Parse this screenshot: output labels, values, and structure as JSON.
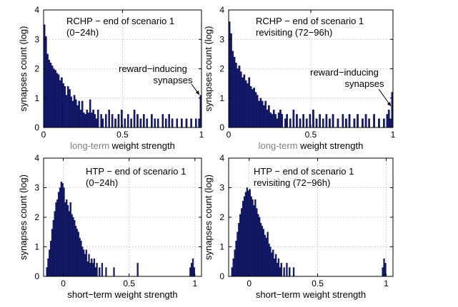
{
  "chart_data": [
    {
      "type": "bar",
      "title_lines": [
        "RCHP − end of scenario 1",
        "(0−24h)"
      ],
      "xlabel_prefix": "long-term",
      "xlabel_rest": " weight strength",
      "ylabel": "synapses count (log)",
      "xlim": [
        0,
        1
      ],
      "ylim": [
        0,
        4
      ],
      "xticks": [
        "0",
        "0.5",
        "1"
      ],
      "yticks": [
        "0",
        "1",
        "2",
        "3",
        "4"
      ],
      "grid": true,
      "annotation": [
        "reward−inducing",
        "synapses"
      ],
      "bin_width": 0.01,
      "bins": [
        [
          0.005,
          3.5
        ],
        [
          0.015,
          3.1
        ],
        [
          0.025,
          2.5
        ],
        [
          0.035,
          2.3
        ],
        [
          0.045,
          2.2
        ],
        [
          0.055,
          2.1
        ],
        [
          0.065,
          2.0
        ],
        [
          0.075,
          1.95
        ],
        [
          0.085,
          1.85
        ],
        [
          0.095,
          1.8
        ],
        [
          0.105,
          1.6
        ],
        [
          0.115,
          1.7
        ],
        [
          0.125,
          1.5
        ],
        [
          0.135,
          1.4
        ],
        [
          0.145,
          1.1
        ],
        [
          0.155,
          1.4
        ],
        [
          0.165,
          1.3
        ],
        [
          0.175,
          1.05
        ],
        [
          0.185,
          0.9
        ],
        [
          0.195,
          1.1
        ],
        [
          0.205,
          0.95
        ],
        [
          0.215,
          0.75
        ],
        [
          0.225,
          0.9
        ],
        [
          0.235,
          0.6
        ],
        [
          0.245,
          0.9
        ],
        [
          0.255,
          0.5
        ],
        [
          0.265,
          0.45
        ],
        [
          0.275,
          0.6
        ],
        [
          0.285,
          0.5
        ],
        [
          0.295,
          0.95
        ],
        [
          0.305,
          0.5
        ],
        [
          0.315,
          0.6
        ],
        [
          0.325,
          0.45
        ],
        [
          0.335,
          0.3
        ],
        [
          0.345,
          0.6
        ],
        [
          0.365,
          0.45
        ],
        [
          0.375,
          0.3
        ],
        [
          0.395,
          0.45
        ],
        [
          0.415,
          0.6
        ],
        [
          0.435,
          0.45
        ],
        [
          0.455,
          0.3
        ],
        [
          0.475,
          0.45
        ],
        [
          0.495,
          0.6
        ],
        [
          0.515,
          0.3
        ],
        [
          0.535,
          0.45
        ],
        [
          0.555,
          0.3
        ],
        [
          0.575,
          0.6
        ],
        [
          0.595,
          0.45
        ],
        [
          0.615,
          0.3
        ],
        [
          0.635,
          0.45
        ],
        [
          0.655,
          0.3
        ],
        [
          0.685,
          0.45
        ],
        [
          0.705,
          0.3
        ],
        [
          0.725,
          0.3
        ],
        [
          0.755,
          0.45
        ],
        [
          0.775,
          0.3
        ],
        [
          0.795,
          0.45
        ],
        [
          0.815,
          0.3
        ],
        [
          0.845,
          0.3
        ],
        [
          0.875,
          0.3
        ],
        [
          0.905,
          0.3
        ],
        [
          0.935,
          0.3
        ],
        [
          0.965,
          0.3
        ],
        [
          0.985,
          0.3
        ],
        [
          0.995,
          1.1
        ]
      ]
    },
    {
      "type": "bar",
      "title_lines": [
        "RCHP − end of scenario 1",
        "revisiting (72−96h)"
      ],
      "xlabel_prefix": "long-term",
      "xlabel_rest": " weight strength",
      "ylabel": "synapses count (log)",
      "xlim": [
        0,
        1
      ],
      "ylim": [
        0,
        4
      ],
      "xticks": [
        "0",
        "0.5",
        "1"
      ],
      "yticks": [
        "0",
        "1",
        "2",
        "3",
        "4"
      ],
      "grid": true,
      "annotation": [
        "reward−inducing",
        "synapses"
      ],
      "bin_width": 0.01,
      "bins": [
        [
          0.005,
          3.6
        ],
        [
          0.015,
          3.2
        ],
        [
          0.025,
          2.6
        ],
        [
          0.035,
          2.4
        ],
        [
          0.045,
          2.2
        ],
        [
          0.055,
          2.0
        ],
        [
          0.065,
          2.1
        ],
        [
          0.075,
          1.9
        ],
        [
          0.085,
          1.7
        ],
        [
          0.095,
          1.8
        ],
        [
          0.105,
          1.6
        ],
        [
          0.115,
          1.5
        ],
        [
          0.125,
          1.7
        ],
        [
          0.135,
          1.4
        ],
        [
          0.145,
          1.3
        ],
        [
          0.155,
          1.35
        ],
        [
          0.165,
          1.2
        ],
        [
          0.175,
          1.1
        ],
        [
          0.185,
          0.9
        ],
        [
          0.195,
          1.0
        ],
        [
          0.205,
          0.9
        ],
        [
          0.215,
          0.75
        ],
        [
          0.225,
          0.9
        ],
        [
          0.235,
          0.6
        ],
        [
          0.245,
          0.75
        ],
        [
          0.255,
          0.5
        ],
        [
          0.265,
          0.45
        ],
        [
          0.275,
          0.6
        ],
        [
          0.285,
          0.45
        ],
        [
          0.295,
          0.3
        ],
        [
          0.305,
          0.5
        ],
        [
          0.315,
          0.6
        ],
        [
          0.325,
          0.45
        ],
        [
          0.345,
          0.3
        ],
        [
          0.355,
          0.45
        ],
        [
          0.375,
          0.3
        ],
        [
          0.395,
          0.6
        ],
        [
          0.415,
          0.45
        ],
        [
          0.435,
          0.3
        ],
        [
          0.455,
          0.45
        ],
        [
          0.475,
          0.3
        ],
        [
          0.495,
          0.45
        ],
        [
          0.515,
          0.6
        ],
        [
          0.535,
          0.3
        ],
        [
          0.555,
          0.45
        ],
        [
          0.575,
          0.3
        ],
        [
          0.595,
          0.45
        ],
        [
          0.615,
          0.3
        ],
        [
          0.635,
          0.45
        ],
        [
          0.665,
          0.3
        ],
        [
          0.695,
          0.45
        ],
        [
          0.715,
          0.3
        ],
        [
          0.735,
          0.45
        ],
        [
          0.765,
          0.3
        ],
        [
          0.785,
          0.45
        ],
        [
          0.815,
          0.3
        ],
        [
          0.835,
          0.45
        ],
        [
          0.855,
          0.3
        ],
        [
          0.885,
          0.45
        ],
        [
          0.915,
          0.3
        ],
        [
          0.945,
          0.3
        ],
        [
          0.965,
          0.45
        ],
        [
          0.975,
          0.6
        ],
        [
          0.985,
          0.3
        ],
        [
          0.995,
          1.2
        ]
      ]
    },
    {
      "type": "bar",
      "title_lines": [
        "HTP − end of scenario 1",
        "(0−24h)"
      ],
      "xlabel_prefix": "",
      "xlabel_rest": "short−term weight strength",
      "ylabel": "synapses count (log)",
      "xlim": [
        -0.15,
        1.05
      ],
      "ylim": [
        0,
        4
      ],
      "xticks": [
        "0",
        "0.5",
        "1"
      ],
      "yticks": [
        "0",
        "1",
        "2",
        "3",
        "4"
      ],
      "grid": true,
      "bin_width": 0.01,
      "bins": [
        [
          -0.125,
          0.3
        ],
        [
          -0.115,
          0.6
        ],
        [
          -0.105,
          0.9
        ],
        [
          -0.095,
          1.2
        ],
        [
          -0.085,
          1.6
        ],
        [
          -0.075,
          1.9
        ],
        [
          -0.065,
          2.2
        ],
        [
          -0.055,
          2.5
        ],
        [
          -0.045,
          2.6
        ],
        [
          -0.035,
          2.85
        ],
        [
          -0.025,
          3.0
        ],
        [
          -0.015,
          3.2
        ],
        [
          -0.005,
          3.15
        ],
        [
          0.005,
          3.0
        ],
        [
          0.015,
          2.5
        ],
        [
          0.025,
          2.6
        ],
        [
          0.035,
          2.4
        ],
        [
          0.045,
          2.2
        ],
        [
          0.055,
          2.5
        ],
        [
          0.065,
          2.1
        ],
        [
          0.075,
          2.0
        ],
        [
          0.085,
          1.9
        ],
        [
          0.095,
          1.7
        ],
        [
          0.105,
          1.6
        ],
        [
          0.115,
          1.5
        ],
        [
          0.125,
          1.3
        ],
        [
          0.135,
          1.2
        ],
        [
          0.145,
          1.0
        ],
        [
          0.155,
          0.9
        ],
        [
          0.165,
          0.75
        ],
        [
          0.175,
          0.9
        ],
        [
          0.185,
          0.5
        ],
        [
          0.195,
          0.75
        ],
        [
          0.205,
          0.45
        ],
        [
          0.215,
          0.6
        ],
        [
          0.225,
          0.45
        ],
        [
          0.235,
          0.6
        ],
        [
          0.245,
          0.3
        ],
        [
          0.255,
          0.45
        ],
        [
          0.275,
          0.3
        ],
        [
          0.295,
          0.45
        ],
        [
          0.325,
          0.3
        ],
        [
          0.385,
          0.3
        ],
        [
          0.565,
          0.45
        ],
        [
          0.965,
          0.3
        ],
        [
          0.975,
          0.45
        ],
        [
          0.985,
          0.6
        ],
        [
          0.995,
          0.3
        ]
      ]
    },
    {
      "type": "bar",
      "title_lines": [
        "HTP − end of scenario 1",
        "revisiting (72−96h)"
      ],
      "xlabel_prefix": "",
      "xlabel_rest": "short−term weight strength",
      "ylabel": "synapses count (log)",
      "xlim": [
        -0.15,
        1.05
      ],
      "ylim": [
        0,
        4
      ],
      "xticks": [
        "0",
        "0.5",
        "1"
      ],
      "yticks": [
        "0",
        "1",
        "2",
        "3",
        "4"
      ],
      "grid": true,
      "bin_width": 0.01,
      "bins": [
        [
          -0.125,
          0.3
        ],
        [
          -0.115,
          0.6
        ],
        [
          -0.105,
          0.9
        ],
        [
          -0.095,
          1.2
        ],
        [
          -0.085,
          1.5
        ],
        [
          -0.075,
          1.8
        ],
        [
          -0.065,
          2.1
        ],
        [
          -0.055,
          2.3
        ],
        [
          -0.045,
          2.55
        ],
        [
          -0.035,
          2.7
        ],
        [
          -0.025,
          2.85
        ],
        [
          -0.015,
          3.0
        ],
        [
          -0.005,
          2.9
        ],
        [
          0.005,
          2.95
        ],
        [
          0.015,
          2.7
        ],
        [
          0.025,
          2.6
        ],
        [
          0.035,
          2.4
        ],
        [
          0.045,
          2.6
        ],
        [
          0.055,
          2.3
        ],
        [
          0.065,
          2.1
        ],
        [
          0.075,
          2.0
        ],
        [
          0.085,
          1.8
        ],
        [
          0.095,
          1.7
        ],
        [
          0.105,
          1.6
        ],
        [
          0.115,
          1.4
        ],
        [
          0.125,
          1.3
        ],
        [
          0.135,
          1.5
        ],
        [
          0.145,
          1.1
        ],
        [
          0.155,
          1.0
        ],
        [
          0.165,
          0.8
        ],
        [
          0.175,
          0.9
        ],
        [
          0.185,
          0.6
        ],
        [
          0.195,
          0.75
        ],
        [
          0.205,
          0.45
        ],
        [
          0.215,
          0.6
        ],
        [
          0.225,
          0.3
        ],
        [
          0.235,
          0.45
        ],
        [
          0.255,
          0.3
        ],
        [
          0.275,
          0.45
        ],
        [
          0.295,
          0.3
        ],
        [
          0.325,
          0.3
        ],
        [
          0.975,
          0.3
        ],
        [
          0.985,
          0.6
        ],
        [
          0.995,
          0.45
        ]
      ]
    }
  ]
}
